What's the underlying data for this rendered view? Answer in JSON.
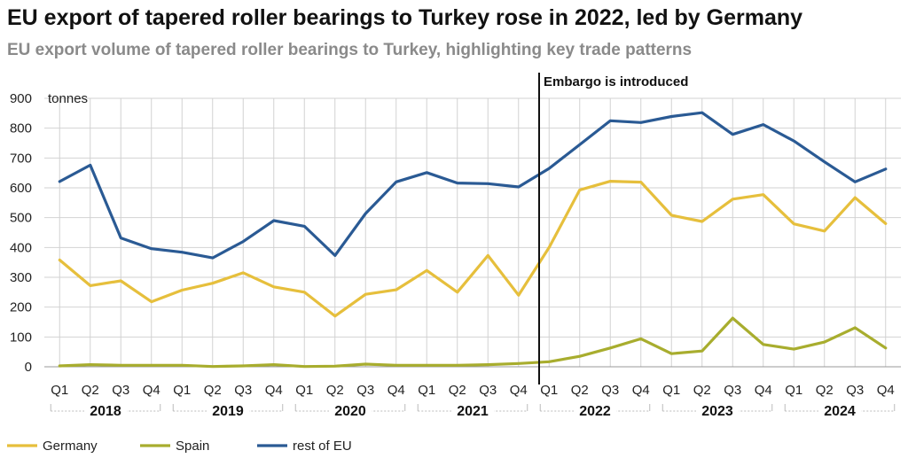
{
  "title": "EU export of tapered roller bearings to Turkey rose in 2022, led by Germany",
  "subtitle": "EU export volume of tapered roller bearings to Turkey, highlighting key trade patterns",
  "chart_data": {
    "type": "line",
    "ylabel": "tonnes",
    "ylim": [
      0,
      900
    ],
    "yticks": [
      0,
      100,
      200,
      300,
      400,
      500,
      600,
      700,
      800,
      900
    ],
    "grid": true,
    "legend_position": "bottom-left",
    "categories": [
      "Q1",
      "Q2",
      "Q3",
      "Q4",
      "Q1",
      "Q2",
      "Q3",
      "Q4",
      "Q1",
      "Q2",
      "Q3",
      "Q4",
      "Q1",
      "Q2",
      "Q3",
      "Q4",
      "Q1",
      "Q2",
      "Q3",
      "Q4",
      "Q1",
      "Q2",
      "Q3",
      "Q4",
      "Q1",
      "Q2",
      "Q3",
      "Q4"
    ],
    "years": [
      "2018",
      "2019",
      "2020",
      "2021",
      "2022",
      "2023",
      "2024"
    ],
    "series": [
      {
        "name": "Germany",
        "color": "#e6bf3c",
        "values": [
          358,
          272,
          288,
          218,
          257,
          280,
          315,
          268,
          250,
          170,
          243,
          258,
          323,
          250,
          373,
          240,
          400,
          593,
          622,
          619,
          508,
          487,
          562,
          577,
          479,
          455,
          567,
          480
        ]
      },
      {
        "name": "Spain",
        "color": "#a8ad2e",
        "values": [
          3,
          7,
          5,
          5,
          5,
          1,
          3,
          7,
          1,
          2,
          9,
          5,
          5,
          5,
          7,
          11,
          17,
          35,
          63,
          94,
          44,
          53,
          163,
          75,
          59,
          83,
          131,
          63
        ]
      },
      {
        "name": "rest of EU",
        "color": "#2a5a94",
        "values": [
          621,
          676,
          432,
          396,
          384,
          365,
          420,
          490,
          471,
          373,
          514,
          620,
          651,
          616,
          614,
          603,
          665,
          745,
          825,
          819,
          839,
          852,
          779,
          812,
          757,
          687,
          620,
          663
        ]
      }
    ],
    "annotation": {
      "label": "Embargo is introduced",
      "at_index": 16
    }
  }
}
